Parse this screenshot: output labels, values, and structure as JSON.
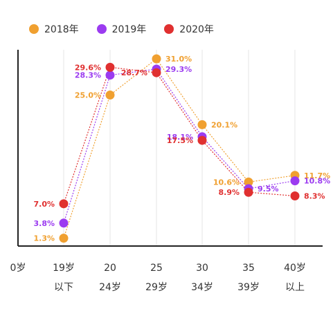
{
  "chart_data": {
    "type": "line",
    "title": "",
    "xlabel": "",
    "ylabel": "",
    "categories": [
      {
        "line1": "19岁",
        "line2": "以下"
      },
      {
        "line1": "20",
        "line2": "24岁"
      },
      {
        "line1": "25",
        "line2": "29岁"
      },
      {
        "line1": "30",
        "line2": "34岁"
      },
      {
        "line1": "35",
        "line2": "39岁"
      },
      {
        "line1": "40岁",
        "line2": "以上"
      }
    ],
    "origin_label": "0岁",
    "ylim": [
      0,
      32.5
    ],
    "grid": "vertical",
    "legend_position": "top-left",
    "series": [
      {
        "name": "2018年",
        "color": "#F0A030",
        "values": [
          1.3,
          25.0,
          31.0,
          20.1,
          10.6,
          11.7
        ],
        "labels": [
          "1.3%",
          "25.0%",
          "31.0%",
          "20.1%",
          "10.6%",
          "11.7%"
        ],
        "label_side": [
          "left",
          "left",
          "right",
          "right",
          "left",
          "right"
        ]
      },
      {
        "name": "2019年",
        "color": "#9B3BF0",
        "values": [
          3.8,
          28.3,
          29.3,
          18.1,
          9.5,
          10.8
        ],
        "labels": [
          "3.8%",
          "28.3%",
          "29.3%",
          "18.1%",
          "9.5%",
          "10.8%"
        ],
        "label_side": [
          "left",
          "left",
          "right",
          "left",
          "right",
          "right"
        ]
      },
      {
        "name": "2020年",
        "color": "#E03030",
        "values": [
          7.0,
          29.6,
          28.7,
          17.5,
          8.9,
          8.3
        ],
        "labels": [
          "7.0%",
          "29.6%",
          "28.7%",
          "17.5%",
          "8.9%",
          "8.3%"
        ],
        "label_side": [
          "left",
          "left",
          "left",
          "left",
          "left",
          "right"
        ]
      }
    ]
  }
}
